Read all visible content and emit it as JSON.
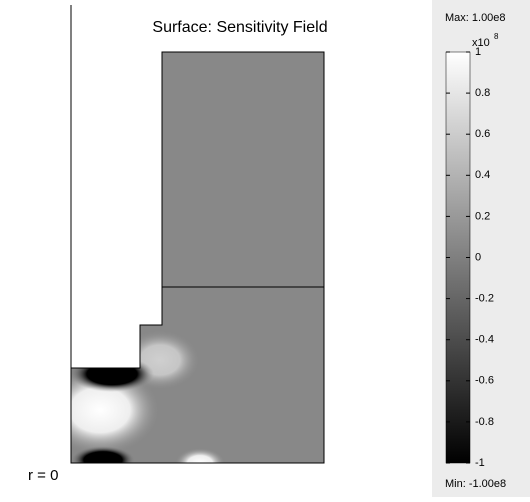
{
  "chart_data": {
    "type": "surface",
    "title": "Surface: Sensitivity Field",
    "axis_label": "r = 0",
    "colorbar": {
      "max_label": "Max: 1.00e8",
      "min_label": "Min: -1.00e8",
      "multiplier_label": "x10",
      "multiplier_exponent": "8",
      "lim": [
        -1,
        1
      ],
      "ticks": [
        1,
        0.8,
        0.6,
        0.4,
        0.2,
        0,
        -0.2,
        -0.4,
        -0.6,
        -0.8,
        -1
      ]
    }
  }
}
